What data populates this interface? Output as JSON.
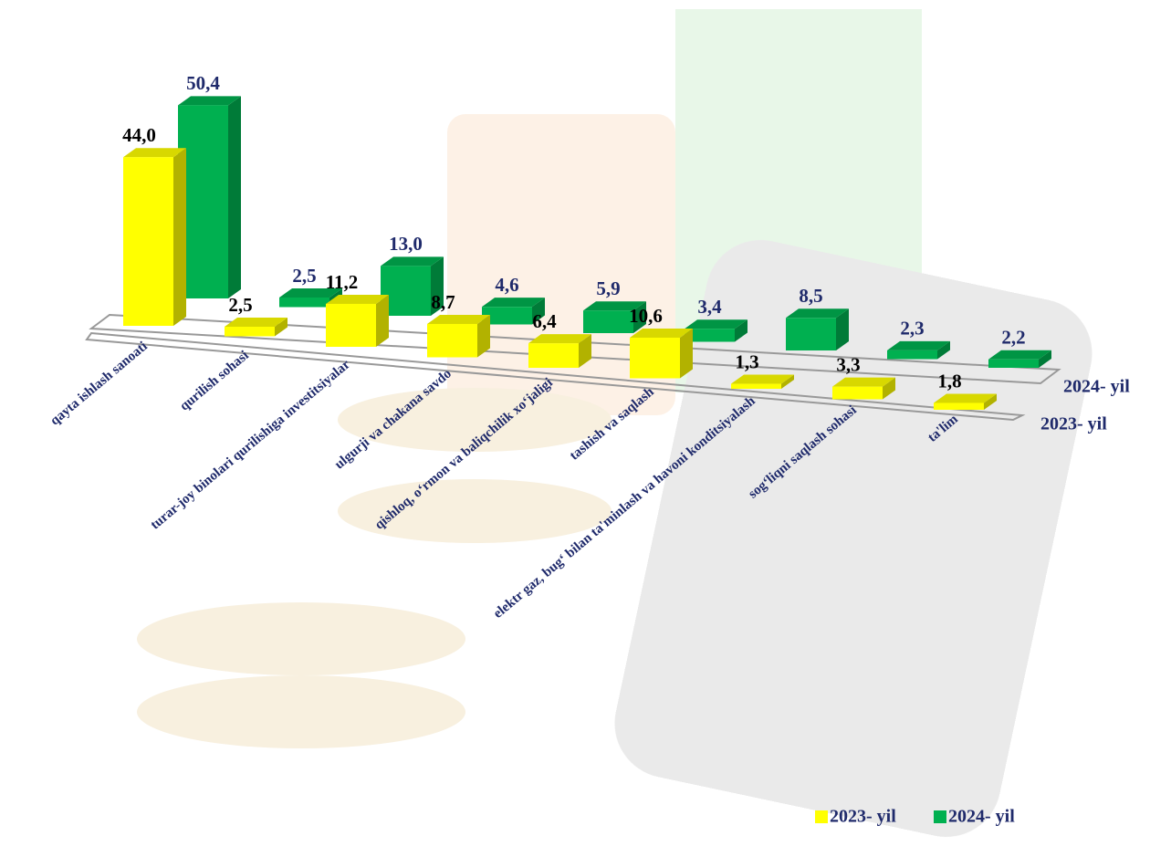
{
  "chart_data": {
    "type": "bar3d",
    "categories": [
      "qayta ishlash sanoati",
      "qurilish sohasi",
      "turar-joy binolari qurilishiga investitsiyalar",
      "ulgurji va chakana savdo",
      "qishloq, oʻrmon va baliqchilik xoʻjaligi",
      "tashish va saqlash",
      "elektr gaz, bugʻ bilan ta'minlash va havoni konditsiyalash",
      "sogʻliqni saqlash sohasi",
      "ta'lim"
    ],
    "series": [
      {
        "name": "2023- yil",
        "color": "#ffff00",
        "label_color": "#000000",
        "values": [
          44.0,
          2.5,
          11.2,
          8.7,
          6.4,
          10.6,
          1.3,
          3.3,
          1.8
        ],
        "value_labels": [
          "44,0",
          "2,5",
          "11,2",
          "8,7",
          "6,4",
          "10,6",
          "1,3",
          "3,3",
          "1,8"
        ]
      },
      {
        "name": "2024- yil",
        "color": "#00b050",
        "label_color": "#1f2a6b",
        "values": [
          50.4,
          2.5,
          13.0,
          4.6,
          5.9,
          3.4,
          8.5,
          2.3,
          2.2
        ],
        "value_labels": [
          "50,4",
          "2,5",
          "13,0",
          "4,6",
          "5,9",
          "3,4",
          "8,5",
          "2,3",
          "2,2"
        ]
      }
    ],
    "legend": "bottom-right"
  }
}
